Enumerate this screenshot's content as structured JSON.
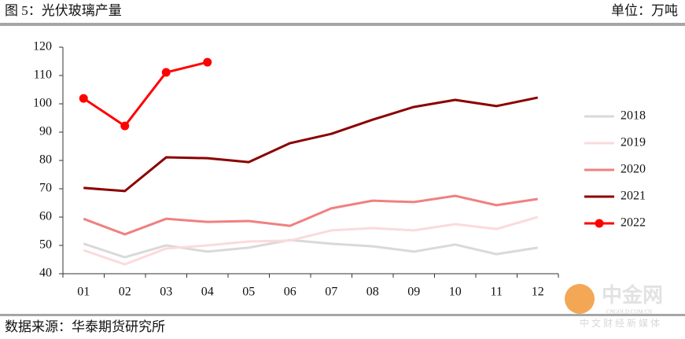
{
  "header": {
    "title": "图 5：光伏玻璃产量",
    "unit": "单位：万吨"
  },
  "footer": {
    "source": "数据来源：华泰期货研究所"
  },
  "watermark": {
    "name": "中金网",
    "url": "CNGOLD.COM.CN",
    "tagline": "中 文 财 经 新 媒 体"
  },
  "chart_data": {
    "type": "line",
    "categories": [
      "01",
      "02",
      "03",
      "04",
      "05",
      "06",
      "07",
      "08",
      "09",
      "10",
      "11",
      "12"
    ],
    "ylim": [
      40,
      120
    ],
    "yticks": [
      40,
      50,
      60,
      70,
      80,
      90,
      100,
      110,
      120
    ],
    "grid": false,
    "legend": "right",
    "series": [
      {
        "name": "2018",
        "color": "#d9d9d9",
        "marker": false,
        "values": [
          50.6,
          45.8,
          50,
          47.8,
          49.2,
          51.9,
          50.6,
          49.7,
          47.8,
          50.3,
          46.9,
          49.2
        ]
      },
      {
        "name": "2019",
        "color": "#fbdadd",
        "marker": false,
        "values": [
          48.3,
          43.3,
          48.9,
          50,
          51.4,
          51.7,
          55.3,
          56.1,
          55.3,
          57.5,
          55.8,
          60
        ]
      },
      {
        "name": "2020",
        "color": "#f08080",
        "marker": false,
        "values": [
          59.4,
          53.9,
          59.4,
          58.3,
          58.6,
          56.9,
          63.1,
          65.8,
          65.3,
          67.5,
          64.2,
          66.4
        ]
      },
      {
        "name": "2021",
        "color": "#8b0000",
        "marker": false,
        "values": [
          70.3,
          69.2,
          81.1,
          80.8,
          79.4,
          86.1,
          89.4,
          94.4,
          98.9,
          101.4,
          99.2,
          102.2
        ]
      },
      {
        "name": "2022",
        "color": "#ff0000",
        "marker": true,
        "values": [
          101.9,
          92.2,
          111.1,
          114.7,
          null,
          null,
          null,
          null,
          null,
          null,
          null,
          null
        ]
      }
    ]
  }
}
